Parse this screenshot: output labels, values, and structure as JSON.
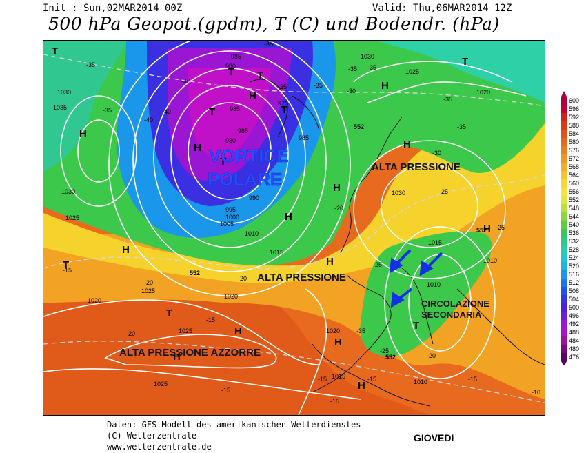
{
  "header": {
    "init": "Init : Sun,02MAR2014 00Z",
    "valid": "Valid: Thu,06MAR2014 12Z",
    "title": "500 hPa Geopot.(gpdm), T (C) und Bodendr. (hPa)"
  },
  "footer": {
    "line1": "Daten: GFS-Modell des amerikanischen Wetterdienstes",
    "line2": "(C) Wetterzentrale",
    "line3": "www.wetterzentrale.de",
    "day": "GIOVEDI"
  },
  "annotations": {
    "vortice_1": "VORTICE",
    "vortice_2": "POLARE",
    "alta_nord": "ALTA PRESSIONE",
    "alta_centro": "ALTA PRESSIONE",
    "alta_azzorre": "ALTA PRESSIONE AZZORRE",
    "circolazione_1": "CIRCOLAZIONE",
    "circolazione_2": "SECONDARIA"
  },
  "pressure_centers": [
    {
      "kind": "T"
    },
    {
      "kind": "T"
    },
    {
      "kind": "T"
    },
    {
      "kind": "T"
    },
    {
      "kind": "T"
    },
    {
      "kind": "T"
    },
    {
      "kind": "T"
    },
    {
      "kind": "T"
    },
    {
      "kind": "T"
    },
    {
      "kind": "T"
    },
    {
      "kind": "H"
    },
    {
      "kind": "H"
    },
    {
      "kind": "H"
    },
    {
      "kind": "H"
    },
    {
      "kind": "H"
    },
    {
      "kind": "H"
    },
    {
      "kind": "H"
    },
    {
      "kind": "H"
    },
    {
      "kind": "H"
    },
    {
      "kind": "H"
    },
    {
      "kind": "H"
    },
    {
      "kind": "H"
    },
    {
      "kind": "H"
    },
    {
      "kind": "H"
    }
  ],
  "isobar_labels": [
    "1030",
    "1035",
    "1030",
    "1025",
    "985",
    "980",
    "985",
    "975",
    "985",
    "980",
    "985",
    "995",
    "1000",
    "1005",
    "990",
    "1010",
    "1015",
    "1030",
    "1025",
    "1020",
    "1030",
    "1015",
    "1010",
    "1010",
    "1020",
    "1025",
    "1025",
    "1020",
    "1015",
    "1025",
    "1010",
    "1020"
  ],
  "temp_labels": [
    "-35",
    "-35",
    "-35",
    "-40",
    "-40",
    "-40",
    "-35",
    "-35",
    "-35",
    "-35",
    "-30",
    "-35",
    "-35",
    "-30",
    "-20",
    "-25",
    "-25",
    "-25",
    "-20",
    "-20",
    "-15",
    "-15",
    "-15",
    "-15",
    "-15",
    "-15",
    "-25",
    "-35",
    "-20",
    "-20",
    "-15",
    "-10"
  ],
  "height_labels": [
    "552",
    "552",
    "552",
    "552"
  ],
  "legend": {
    "values": [
      "600",
      "596",
      "592",
      "588",
      "584",
      "580",
      "576",
      "572",
      "568",
      "564",
      "560",
      "556",
      "552",
      "548",
      "544",
      "540",
      "536",
      "532",
      "528",
      "524",
      "520",
      "516",
      "512",
      "508",
      "504",
      "500",
      "496",
      "492",
      "488",
      "484",
      "480",
      "476"
    ],
    "colors": [
      "#b0003a",
      "#c4002e",
      "#d4201e",
      "#dc3a16",
      "#e2521a",
      "#e6691c",
      "#ea7f20",
      "#f09622",
      "#f5ad24",
      "#f8c42a",
      "#f9d833",
      "#f3e63a",
      "#dfe83a",
      "#b8e23a",
      "#8ad83c",
      "#5ccc40",
      "#3ec458",
      "#2ecb88",
      "#22cdb0",
      "#1ac9cf",
      "#18b6e0",
      "#1896ec",
      "#1a74f0",
      "#1e54ee",
      "#3236e6",
      "#4a22dc",
      "#6e1ed8",
      "#9418d4",
      "#b012cc",
      "#a0109a",
      "#7a0a78",
      "#5a0660"
    ]
  }
}
